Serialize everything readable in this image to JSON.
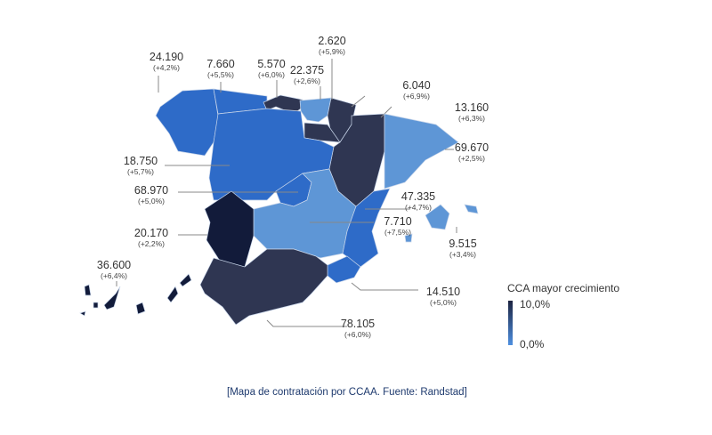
{
  "colors": {
    "darkest": "#121b3a",
    "dark": "#2f3652",
    "mid": "#2e6bc8",
    "light": "#5e96d6",
    "leader": "#888888"
  },
  "regions": [
    {
      "name": "Galicia",
      "value": "24.190",
      "change": "(+4,2%)",
      "color": "mid"
    },
    {
      "name": "Asturias",
      "value": "7.660",
      "change": "(+5,5%)",
      "color": "mid"
    },
    {
      "name": "Cantabria",
      "value": "5.570",
      "change": "(+6,0%)",
      "color": "dark"
    },
    {
      "name": "País Vasco",
      "value": "22.375",
      "change": "(+2,6%)",
      "color": "light"
    },
    {
      "name": "Navarra",
      "value": "2.620",
      "change": "(+5,9%)",
      "color": "dark"
    },
    {
      "name": "La Rioja",
      "value": "6.040",
      "change": "(+6,9%)",
      "color": "dark"
    },
    {
      "name": "Aragón",
      "value": "13.160",
      "change": "(+6,3%)",
      "color": "dark"
    },
    {
      "name": "Cataluña",
      "value": "69.670",
      "change": "(+2,5%)",
      "color": "light"
    },
    {
      "name": "Castilla y León",
      "value": "18.750",
      "change": "(+5,7%)",
      "color": "mid"
    },
    {
      "name": "Madrid",
      "value": "68.970",
      "change": "(+5,0%)",
      "color": "mid"
    },
    {
      "name": "Castilla-La Mancha",
      "value": "20.170",
      "change": "(+2,2%)",
      "color": "light"
    },
    {
      "name": "Comunidad Valenciana",
      "value": "47.335",
      "change": "(+4,7%)",
      "color": "mid"
    },
    {
      "name": "Extremadura",
      "value": "7.710",
      "change": "(+7,5%)",
      "color": "darkest"
    },
    {
      "name": "Baleares",
      "value": "9.515",
      "change": "(+3,4%)",
      "color": "light"
    },
    {
      "name": "Canarias",
      "value": "36.600",
      "change": "(+6,4%)",
      "color": "darkest"
    },
    {
      "name": "Murcia",
      "value": "14.510",
      "change": "(+5,0%)",
      "color": "mid"
    },
    {
      "name": "Andalucía",
      "value": "78.105",
      "change": "(+6,0%)",
      "color": "dark"
    }
  ],
  "legend": {
    "title": "CCA mayor crecimiento",
    "max": "10,0%",
    "min": "0,0%"
  },
  "caption": "[Mapa de contratación por CCAA. Fuente: Randstad]"
}
